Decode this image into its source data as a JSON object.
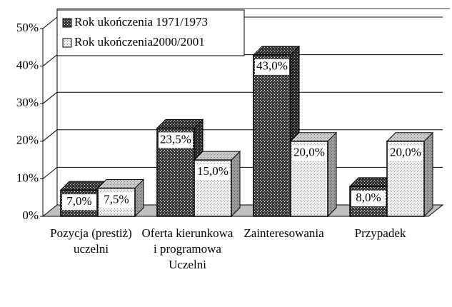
{
  "chart_data": {
    "type": "bar3d",
    "categories": [
      "Pozycja (prestiż) uczelni",
      "Oferta kierunkowa i programowa Uczelni",
      "Zainteresowania",
      "Przypadek"
    ],
    "series": [
      {
        "name": "Rok ukończenia 1971/1973",
        "color": "#3a3a3a",
        "values": [
          7.0,
          23.5,
          43.0,
          8.0
        ],
        "value_labels": [
          "7,0%",
          "23,5%",
          "43,0%",
          "8,0%"
        ]
      },
      {
        "name": "Rok ukończenia2000/2001",
        "color": "#f2f2f2",
        "values": [
          7.5,
          15.0,
          20.0,
          20.0
        ],
        "value_labels": [
          "7,5%",
          "15,0%",
          "20,0%",
          "20,0%"
        ]
      }
    ],
    "ylim": [
      0,
      50
    ],
    "yticks": [
      {
        "value": 0,
        "label": "0%"
      },
      {
        "value": 10,
        "label": "10%"
      },
      {
        "value": 20,
        "label": "20%"
      },
      {
        "value": 30,
        "label": "30%"
      },
      {
        "value": 40,
        "label": "40%"
      },
      {
        "value": 50,
        "label": "50%"
      }
    ],
    "grid": true,
    "legend": "top-left"
  }
}
